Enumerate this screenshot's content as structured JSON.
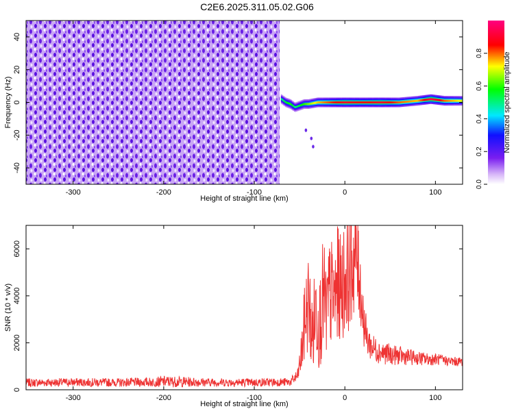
{
  "title": "C2E6.2025.311.05.02.G06",
  "chart_data": [
    {
      "type": "heatmap",
      "xlabel": "Height of straight line (km)",
      "ylabel": "Frequency (Hz)",
      "xlim": [
        -352,
        130
      ],
      "ylim": [
        -50,
        50
      ],
      "xticks": [
        -300,
        -200,
        -100,
        0,
        100
      ],
      "xtick_labels": [
        "-300",
        "-200",
        "-100",
        "0",
        "100"
      ],
      "yticks": [
        -40,
        -20,
        0,
        20,
        40
      ],
      "ytick_labels": [
        "-40",
        "-20",
        "0",
        "20",
        "40"
      ],
      "grid": false,
      "noise_region": {
        "x_from": -352,
        "x_to": -72,
        "y_from": -50,
        "y_to": 50
      },
      "signal_trace": {
        "x": [
          -70,
          -65,
          -60,
          -55,
          -50,
          -45,
          -40,
          -30,
          -20,
          -10,
          0,
          20,
          40,
          60,
          80,
          95,
          110,
          130
        ],
        "y": [
          2,
          0,
          -1,
          -3,
          -2,
          -1,
          -1,
          0,
          0,
          0,
          0,
          0,
          0,
          0,
          1,
          2,
          1,
          1
        ],
        "amplitude": [
          0.5,
          0.55,
          0.6,
          0.5,
          0.55,
          0.6,
          0.65,
          0.75,
          0.8,
          0.85,
          0.9,
          0.85,
          0.9,
          0.8,
          0.75,
          0.95,
          0.8,
          0.7
        ]
      },
      "scatter_points": {
        "x": [
          -43,
          -37,
          -35
        ],
        "y": [
          -17,
          -22,
          -27
        ]
      },
      "colorbar": {
        "label": "Normalized spectral amplitude",
        "range": [
          0.0,
          1.0
        ],
        "ticks": [
          0.0,
          0.2,
          0.4,
          0.6,
          0.8
        ],
        "tick_labels": [
          "0.0",
          "0.2",
          "0.4",
          "0.6",
          "0.8"
        ],
        "colormap": "rainbow (white-purple-blue-cyan-green-yellow-red-magenta)"
      }
    },
    {
      "type": "line",
      "xlabel": "Height of straight line (km)",
      "ylabel": "SNR (10 * v/v)",
      "xlim": [
        -352,
        130
      ],
      "ylim": [
        0,
        7000
      ],
      "xticks": [
        -300,
        -200,
        -100,
        0,
        100
      ],
      "xtick_labels": [
        "-300",
        "-200",
        "-100",
        "0",
        "100"
      ],
      "yticks": [
        0,
        2000,
        4000,
        6000
      ],
      "ytick_labels": [
        "0",
        "2000",
        "4000",
        "6000"
      ],
      "grid": false,
      "color": "#ee3333",
      "series": [
        {
          "name": "",
          "x": [
            -352,
            -300,
            -250,
            -210,
            -200,
            -150,
            -100,
            -60,
            -52,
            -48,
            -44,
            -40,
            -36,
            -32,
            -28,
            -24,
            -20,
            -16,
            -12,
            -8,
            -4,
            0,
            4,
            8,
            12,
            16,
            20,
            24,
            30,
            40,
            50,
            60,
            70,
            80,
            90,
            100,
            110,
            120,
            130
          ],
          "y": [
            300,
            320,
            310,
            330,
            350,
            320,
            310,
            330,
            600,
            1500,
            3000,
            3800,
            2200,
            3500,
            2800,
            4000,
            3200,
            4200,
            3800,
            4500,
            4300,
            4800,
            5000,
            5400,
            5800,
            4900,
            3200,
            2200,
            1800,
            1600,
            1500,
            1450,
            1400,
            1350,
            1300,
            1300,
            1250,
            1200,
            1200
          ],
          "noise_amplitude": [
            180,
            180,
            180,
            200,
            250,
            180,
            180,
            180,
            300,
            900,
            1800,
            2200,
            1800,
            2200,
            2000,
            2500,
            2200,
            2500,
            2200,
            2500,
            2300,
            2500,
            2500,
            2500,
            2500,
            2000,
            1200,
            800,
            600,
            500,
            450,
            400,
            350,
            300,
            280,
            250,
            220,
            200,
            200
          ]
        }
      ]
    }
  ]
}
